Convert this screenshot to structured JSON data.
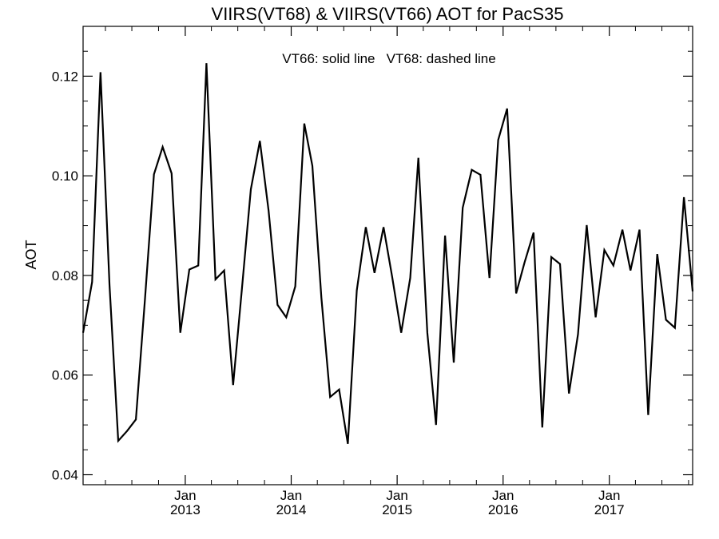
{
  "chart_data": {
    "type": "line",
    "title": "VIIRS(VT68) & VIIRS(VT66)  AOT for PacS35",
    "annotation": "VT66: solid line   VT68: dashed line",
    "ylabel": "AOT",
    "xlabel": "",
    "ylim": [
      0.038,
      0.13
    ],
    "xlim": [
      "2012-01-15",
      "2017-10-15"
    ],
    "yticks": [
      {
        "value": 0.04,
        "label": "0.04"
      },
      {
        "value": 0.06,
        "label": "0.06"
      },
      {
        "value": 0.08,
        "label": "0.08"
      },
      {
        "value": 0.1,
        "label": "0.10"
      },
      {
        "value": 0.12,
        "label": "0.12"
      }
    ],
    "xticks": [
      {
        "date": "2013-01-01",
        "month": "Jan",
        "year": "2013"
      },
      {
        "date": "2014-01-01",
        "month": "Jan",
        "year": "2014"
      },
      {
        "date": "2015-01-01",
        "month": "Jan",
        "year": "2015"
      },
      {
        "date": "2016-01-01",
        "month": "Jan",
        "year": "2016"
      },
      {
        "date": "2017-01-01",
        "month": "Jan",
        "year": "2017"
      }
    ],
    "grid": false,
    "series": [
      {
        "name": "VT66",
        "style": "solid",
        "color": "#000000",
        "x": [
          "2012-01-15",
          "2012-02-15",
          "2012-03-15",
          "2012-04-15",
          "2012-05-15",
          "2012-06-15",
          "2012-07-15",
          "2012-08-15",
          "2012-09-15",
          "2012-10-15",
          "2012-11-15",
          "2012-12-15",
          "2013-01-15",
          "2013-02-15",
          "2013-03-15",
          "2013-04-15",
          "2013-05-15",
          "2013-06-15",
          "2013-07-15",
          "2013-08-15",
          "2013-09-15",
          "2013-10-15",
          "2013-11-15",
          "2013-12-15",
          "2014-01-15",
          "2014-02-15",
          "2014-03-15",
          "2014-04-15",
          "2014-05-15",
          "2014-06-15",
          "2014-07-15",
          "2014-08-15",
          "2014-09-15",
          "2014-10-15",
          "2014-11-15",
          "2014-12-15",
          "2015-01-15",
          "2015-02-15",
          "2015-03-15",
          "2015-04-15",
          "2015-05-15",
          "2015-06-15",
          "2015-07-15",
          "2015-08-15",
          "2015-09-15",
          "2015-10-15",
          "2015-11-15",
          "2015-12-15",
          "2016-01-15",
          "2016-02-15",
          "2016-03-15",
          "2016-04-15",
          "2016-05-15",
          "2016-06-15",
          "2016-07-15",
          "2016-08-15",
          "2016-09-15",
          "2016-10-15",
          "2016-11-15",
          "2016-12-15",
          "2017-01-15",
          "2017-02-15",
          "2017-03-15",
          "2017-04-15",
          "2017-05-15",
          "2017-06-15",
          "2017-07-15",
          "2017-08-15",
          "2017-09-15",
          "2017-10-15"
        ],
        "y": [
          0.0685,
          0.0787,
          0.1208,
          0.078,
          0.0468,
          0.0488,
          0.0511,
          0.0751,
          0.1003,
          0.1058,
          0.1005,
          0.0685,
          0.0812,
          0.082,
          0.1226,
          0.0792,
          0.081,
          0.058,
          0.0771,
          0.0973,
          0.107,
          0.093,
          0.0741,
          0.0716,
          0.0778,
          0.1105,
          0.102,
          0.0755,
          0.0556,
          0.0571,
          0.0462,
          0.077,
          0.0897,
          0.0805,
          0.0897,
          0.0797,
          0.0685,
          0.0795,
          0.1036,
          0.0685,
          0.05,
          0.088,
          0.0625,
          0.0936,
          0.1012,
          0.1002,
          0.0795,
          0.1072,
          0.1135,
          0.0764,
          0.0826,
          0.0886,
          0.0495,
          0.0837,
          0.0823,
          0.0563,
          0.0682,
          0.0901,
          0.0716,
          0.0851,
          0.082,
          0.0892,
          0.081,
          0.0892,
          0.052,
          0.0843,
          0.0711,
          0.0695,
          0.0957,
          0.0768
        ]
      }
    ]
  }
}
